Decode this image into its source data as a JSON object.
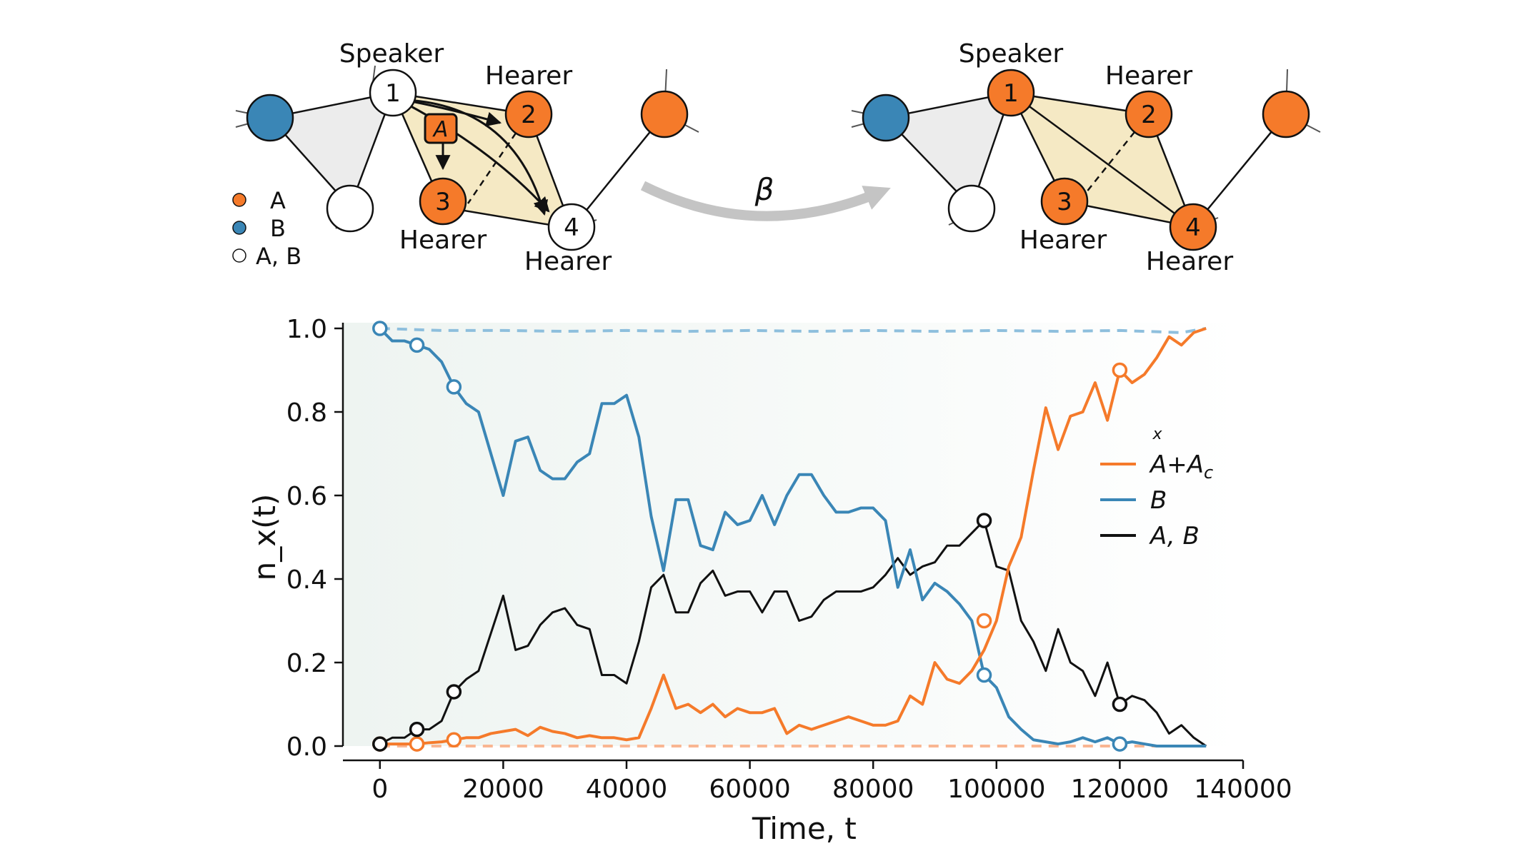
{
  "diagram": {
    "arrow_label": "β",
    "legend": [
      {
        "label": "A",
        "color": "#f57a2a"
      },
      {
        "label": "B",
        "color": "#3a86b6"
      },
      {
        "label": "A, B",
        "color": "#ffffff"
      }
    ],
    "role_speaker": "Speaker",
    "role_hearer": "Hearer",
    "message_label": "A",
    "node_numbers": [
      "1",
      "2",
      "3",
      "4"
    ],
    "colors": {
      "A": "#f57a2a",
      "B": "#3a86b6",
      "AB": "#ffffff",
      "triangle_yellow": "#f5e9c4",
      "triangle_grey": "#ececec"
    }
  },
  "chart_data": {
    "type": "line",
    "xlabel": "Time, t",
    "ylabel": "n_x(t)",
    "xlim": [
      -6000,
      140000
    ],
    "ylim": [
      0,
      1.0
    ],
    "xticks": [
      0,
      20000,
      40000,
      60000,
      80000,
      100000,
      120000,
      140000
    ],
    "xtick_labels": [
      "0",
      "20000",
      "40000",
      "60000",
      "80000",
      "100000",
      "120000",
      "140000"
    ],
    "yticks": [
      0.0,
      0.2,
      0.4,
      0.6,
      0.8,
      1.0
    ],
    "ytick_labels": [
      "0.0",
      "0.2",
      "0.4",
      "0.6",
      "0.8",
      "1.0"
    ],
    "legend_title": "x",
    "legend_position": "right",
    "series": [
      {
        "name": "A+A_c",
        "legend_main": "A+A",
        "legend_sub": "c",
        "color": "#f57a2a",
        "x": [
          0,
          2000,
          4000,
          6000,
          8000,
          10000,
          12000,
          14000,
          16000,
          18000,
          20000,
          22000,
          24000,
          26000,
          28000,
          30000,
          32000,
          34000,
          36000,
          38000,
          40000,
          42000,
          44000,
          46000,
          48000,
          50000,
          52000,
          54000,
          56000,
          58000,
          60000,
          62000,
          64000,
          66000,
          68000,
          70000,
          72000,
          74000,
          76000,
          78000,
          80000,
          82000,
          84000,
          86000,
          88000,
          90000,
          92000,
          94000,
          96000,
          98000,
          100000,
          102000,
          104000,
          106000,
          108000,
          110000,
          112000,
          114000,
          116000,
          118000,
          120000,
          122000,
          124000,
          126000,
          128000,
          130000,
          132000,
          134000
        ],
        "y": [
          0.005,
          0.005,
          0.005,
          0.005,
          0.008,
          0.01,
          0.015,
          0.02,
          0.02,
          0.03,
          0.035,
          0.04,
          0.025,
          0.045,
          0.035,
          0.03,
          0.02,
          0.025,
          0.02,
          0.02,
          0.015,
          0.02,
          0.09,
          0.17,
          0.09,
          0.1,
          0.08,
          0.1,
          0.07,
          0.09,
          0.08,
          0.08,
          0.09,
          0.03,
          0.05,
          0.04,
          0.05,
          0.06,
          0.07,
          0.06,
          0.05,
          0.05,
          0.06,
          0.12,
          0.1,
          0.2,
          0.16,
          0.15,
          0.18,
          0.23,
          0.3,
          0.43,
          0.5,
          0.66,
          0.81,
          0.71,
          0.79,
          0.8,
          0.87,
          0.78,
          0.9,
          0.87,
          0.89,
          0.93,
          0.98,
          0.96,
          0.99,
          1.0
        ],
        "markers_x": [
          0,
          6000,
          12000,
          98000,
          120000
        ],
        "markers_y": [
          0.005,
          0.005,
          0.015,
          0.3,
          0.9
        ]
      },
      {
        "name": "B",
        "legend_main": "B",
        "legend_sub": "",
        "color": "#3a86b6",
        "x": [
          0,
          2000,
          4000,
          6000,
          8000,
          10000,
          12000,
          14000,
          16000,
          18000,
          20000,
          22000,
          24000,
          26000,
          28000,
          30000,
          32000,
          34000,
          36000,
          38000,
          40000,
          42000,
          44000,
          46000,
          48000,
          50000,
          52000,
          54000,
          56000,
          58000,
          60000,
          62000,
          64000,
          66000,
          68000,
          70000,
          72000,
          74000,
          76000,
          78000,
          80000,
          82000,
          84000,
          86000,
          88000,
          90000,
          92000,
          94000,
          96000,
          98000,
          100000,
          102000,
          104000,
          106000,
          108000,
          110000,
          112000,
          114000,
          116000,
          118000,
          120000,
          122000,
          124000,
          126000,
          128000,
          130000,
          132000,
          134000
        ],
        "y": [
          1.0,
          0.97,
          0.97,
          0.96,
          0.95,
          0.92,
          0.86,
          0.82,
          0.8,
          0.7,
          0.6,
          0.73,
          0.74,
          0.66,
          0.64,
          0.64,
          0.68,
          0.7,
          0.82,
          0.82,
          0.84,
          0.74,
          0.55,
          0.42,
          0.59,
          0.59,
          0.48,
          0.47,
          0.56,
          0.53,
          0.54,
          0.6,
          0.53,
          0.6,
          0.65,
          0.65,
          0.6,
          0.56,
          0.56,
          0.57,
          0.57,
          0.54,
          0.38,
          0.47,
          0.35,
          0.39,
          0.37,
          0.34,
          0.3,
          0.17,
          0.14,
          0.07,
          0.04,
          0.015,
          0.01,
          0.005,
          0.01,
          0.02,
          0.01,
          0.02,
          0.005,
          0.01,
          0.005,
          0.0,
          0.0,
          0.0,
          0.0,
          0.0
        ],
        "markers_x": [
          0,
          6000,
          12000,
          98000,
          120000
        ],
        "markers_y": [
          1.0,
          0.96,
          0.86,
          0.17,
          0.005
        ]
      },
      {
        "name": "A, B",
        "legend_main": "A, B",
        "legend_sub": "",
        "color": "#111111",
        "x": [
          0,
          2000,
          4000,
          6000,
          8000,
          10000,
          12000,
          14000,
          16000,
          18000,
          20000,
          22000,
          24000,
          26000,
          28000,
          30000,
          32000,
          34000,
          36000,
          38000,
          40000,
          42000,
          44000,
          46000,
          48000,
          50000,
          52000,
          54000,
          56000,
          58000,
          60000,
          62000,
          64000,
          66000,
          68000,
          70000,
          72000,
          74000,
          76000,
          78000,
          80000,
          82000,
          84000,
          86000,
          88000,
          90000,
          92000,
          94000,
          96000,
          98000,
          100000,
          102000,
          104000,
          106000,
          108000,
          110000,
          112000,
          114000,
          116000,
          118000,
          120000,
          122000,
          124000,
          126000,
          128000,
          130000,
          132000,
          134000
        ],
        "y": [
          0.005,
          0.02,
          0.02,
          0.04,
          0.04,
          0.06,
          0.13,
          0.16,
          0.18,
          0.27,
          0.36,
          0.23,
          0.24,
          0.29,
          0.32,
          0.33,
          0.29,
          0.28,
          0.17,
          0.17,
          0.15,
          0.25,
          0.38,
          0.41,
          0.32,
          0.32,
          0.39,
          0.42,
          0.36,
          0.37,
          0.37,
          0.32,
          0.37,
          0.37,
          0.3,
          0.31,
          0.35,
          0.37,
          0.37,
          0.37,
          0.38,
          0.41,
          0.45,
          0.41,
          0.43,
          0.44,
          0.48,
          0.48,
          0.51,
          0.54,
          0.43,
          0.42,
          0.3,
          0.25,
          0.18,
          0.28,
          0.2,
          0.18,
          0.12,
          0.2,
          0.1,
          0.12,
          0.11,
          0.08,
          0.03,
          0.05,
          0.02,
          0.0
        ],
        "markers_x": [
          0,
          6000,
          12000,
          98000,
          120000
        ],
        "markers_y": [
          0.005,
          0.04,
          0.13,
          0.54,
          0.1
        ]
      }
    ],
    "reference_lines": [
      {
        "name": "B-dashed",
        "color": "#8ebfdd",
        "x": [
          0,
          10000,
          20000,
          30000,
          40000,
          50000,
          60000,
          70000,
          80000,
          90000,
          100000,
          110000,
          120000,
          130000,
          134000
        ],
        "y": [
          1.0,
          0.995,
          0.995,
          0.993,
          0.995,
          0.993,
          0.995,
          0.993,
          0.995,
          0.993,
          0.995,
          0.993,
          0.995,
          0.99,
          1.0
        ]
      },
      {
        "name": "A-dashed",
        "color": "#f9b692",
        "x": [
          0,
          20000,
          40000,
          60000,
          80000,
          100000,
          120000,
          134000
        ],
        "y": [
          0.0,
          0.0,
          0.0,
          0.0,
          0.0,
          0.0,
          0.0,
          0.0
        ]
      }
    ]
  }
}
